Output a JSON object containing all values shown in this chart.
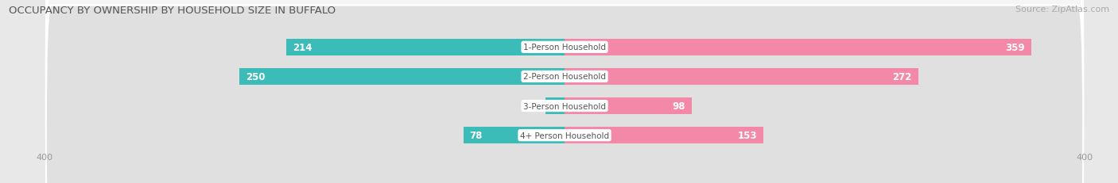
{
  "title": "OCCUPANCY BY OWNERSHIP BY HOUSEHOLD SIZE IN BUFFALO",
  "source": "Source: ZipAtlas.com",
  "categories": [
    "1-Person Household",
    "2-Person Household",
    "3-Person Household",
    "4+ Person Household"
  ],
  "owner_values": [
    214,
    250,
    15,
    78
  ],
  "renter_values": [
    359,
    272,
    98,
    153
  ],
  "owner_color": "#3bbcb8",
  "renter_color": "#f488a8",
  "axis_max": 400,
  "bar_height": 0.58,
  "bg_color": "#e8e8e8",
  "row_bg_light": "#f5f5f5",
  "row_bg_dark": "#e0e0e0",
  "label_bg": "#ffffff",
  "title_fontsize": 9.5,
  "source_fontsize": 8,
  "bar_label_fontsize": 8.5,
  "category_fontsize": 7.5,
  "axis_label_fontsize": 8,
  "legend_fontsize": 8.5,
  "owner_label_color_inside": "#ffffff",
  "owner_label_color_outside": "#555555",
  "renter_label_color_inside": "#ffffff",
  "renter_label_color_outside": "#555555"
}
